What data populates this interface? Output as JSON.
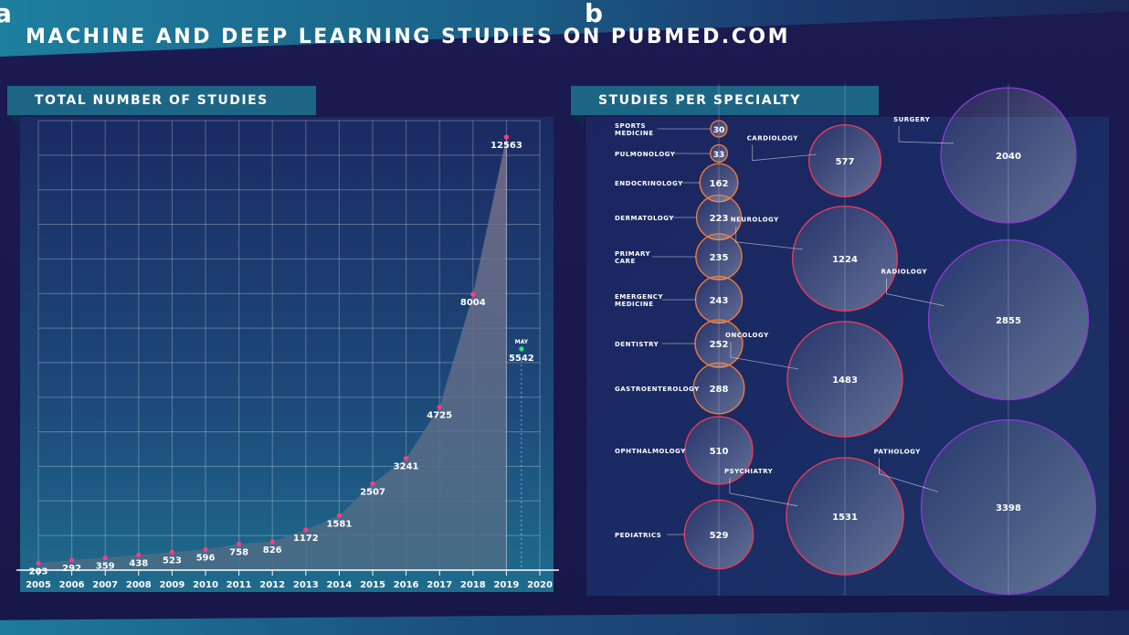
{
  "panel_letters": {
    "a": "a",
    "b": "b"
  },
  "title": "MACHINE AND DEEP LEARNING STUDIES ON PUBMED.COM",
  "left_panel": {
    "header": "TOTAL NUMBER OF STUDIES"
  },
  "right_panel": {
    "header": "STUDIES PER SPECIALTY"
  },
  "colors": {
    "point": "#ff3d7f",
    "may_point": "#33e07a",
    "area": "#5b5f80",
    "bubble_small": "#f07a3a",
    "bubble_mid": "#e83a5a",
    "bubble_large": "#8a3ad0"
  },
  "chart_data": [
    {
      "type": "area",
      "title": "TOTAL NUMBER OF STUDIES",
      "xlabel": "",
      "ylabel": "",
      "x_ticks": [
        "2005",
        "2006",
        "2007",
        "2008",
        "2009",
        "2010",
        "2011",
        "2012",
        "2013",
        "2014",
        "2015",
        "2016",
        "2017",
        "2018",
        "2019",
        "2020"
      ],
      "x": [
        "2005",
        "2006",
        "2007",
        "2008",
        "2009",
        "2010",
        "2011",
        "2012",
        "2013",
        "2014",
        "2015",
        "2016",
        "2017",
        "2018",
        "2019"
      ],
      "values": [
        203,
        292,
        359,
        438,
        523,
        596,
        758,
        826,
        1172,
        1581,
        2507,
        3241,
        4725,
        8004,
        12563
      ],
      "ylim": [
        0,
        13000
      ],
      "grid": true,
      "annotation": {
        "label": "MAY",
        "x": 2019.45,
        "value": 5542
      }
    },
    {
      "type": "bubble",
      "title": "STUDIES PER SPECIALTY",
      "items": [
        {
          "name": "SPORTS\nMEDICINE",
          "value": 30
        },
        {
          "name": "PULMONOLOGY",
          "value": 33
        },
        {
          "name": "ENDOCRINOLOGY",
          "value": 162
        },
        {
          "name": "DERMATOLOGY",
          "value": 223
        },
        {
          "name": "PRIMARY\nCARE",
          "value": 235
        },
        {
          "name": "EMERGENCY\nMEDICINE",
          "value": 243
        },
        {
          "name": "DENTISTRY",
          "value": 252
        },
        {
          "name": "GASTROENTEROLOGY",
          "value": 288
        },
        {
          "name": "OPHTHALMOLOGY",
          "value": 510
        },
        {
          "name": "PEDIATRICS",
          "value": 529
        },
        {
          "name": "CARDIOLOGY",
          "value": 577
        },
        {
          "name": "NEUROLOGY",
          "value": 1224
        },
        {
          "name": "ONCOLOGY",
          "value": 1483
        },
        {
          "name": "PSYCHIATRY",
          "value": 1531
        },
        {
          "name": "SURGERY",
          "value": 2040
        },
        {
          "name": "RADIOLOGY",
          "value": 2855
        },
        {
          "name": "PATHOLOGY",
          "value": 3398
        }
      ]
    }
  ]
}
